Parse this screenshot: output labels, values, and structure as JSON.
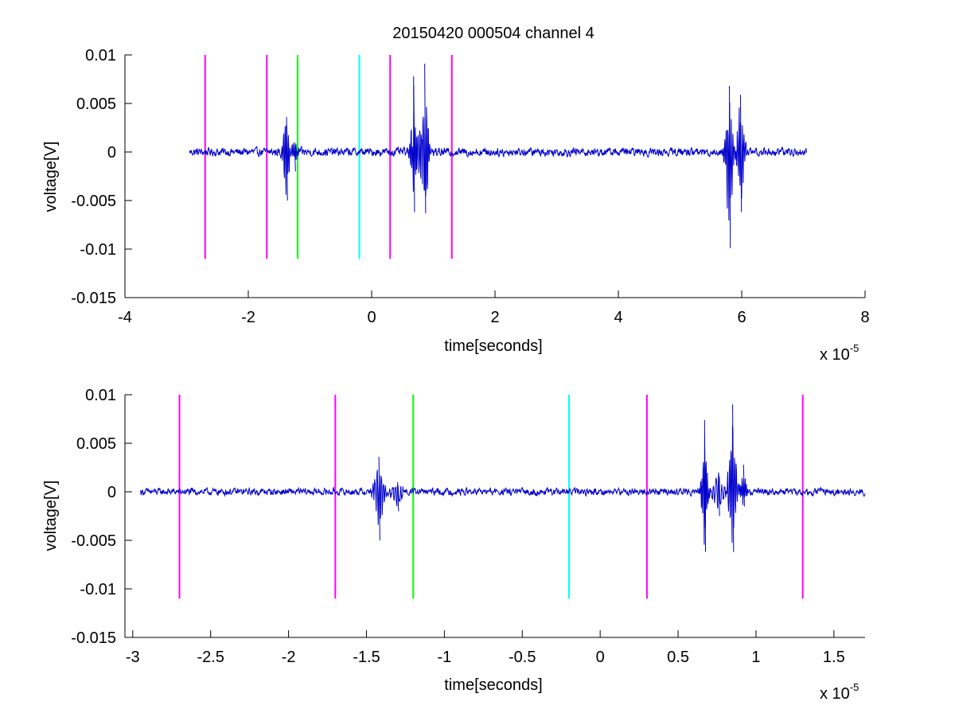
{
  "chart_data": [
    {
      "type": "line",
      "title": "20150420 000504 channel 4",
      "xlabel": "time[seconds]",
      "ylabel": "voltage[V]",
      "x_exponent_label": "x 10",
      "x_exponent_power": "-5",
      "xlim": [
        -4,
        8
      ],
      "ylim": [
        -0.015,
        0.01
      ],
      "xticks": [
        -4,
        -2,
        0,
        2,
        4,
        6,
        8
      ],
      "xtick_labels": [
        "-4",
        "-2",
        "0",
        "2",
        "4",
        "6",
        "8"
      ],
      "yticks": [
        0.01,
        0.005,
        0,
        -0.005,
        -0.01,
        -0.015
      ],
      "ytick_labels": [
        "0.01",
        "0.005",
        "0",
        "-0.005",
        "-0.01",
        "-0.015"
      ],
      "grid": false,
      "series": [
        {
          "color": "#0000cc",
          "x_start": -2.95,
          "x_end": 7.05,
          "baseline": 0,
          "noise_amplitude": 0.0006,
          "bursts": [
            {
              "x": -1.38,
              "min": -0.005,
              "max": 0.0036,
              "width": 0.12
            },
            {
              "x": -1.25,
              "min": -0.002,
              "max": 0.001,
              "width": 0.1
            },
            {
              "x": 0.68,
              "min": -0.0062,
              "max": 0.0078,
              "width": 0.1
            },
            {
              "x": 0.86,
              "min": -0.0063,
              "max": 0.0091,
              "width": 0.12
            },
            {
              "x": 0.78,
              "min": -0.0025,
              "max": 0.002,
              "width": 0.15
            },
            {
              "x": 5.8,
              "min": -0.0099,
              "max": 0.0068,
              "width": 0.12
            },
            {
              "x": 5.98,
              "min": -0.0062,
              "max": 0.0059,
              "width": 0.12
            }
          ]
        }
      ],
      "markers": [
        {
          "x": -2.7,
          "color": "#ff00ff",
          "y_from": -0.011,
          "y_to": 0.01
        },
        {
          "x": -1.7,
          "color": "#ff00ff",
          "y_from": -0.011,
          "y_to": 0.01
        },
        {
          "x": -1.2,
          "color": "#00ff00",
          "y_from": -0.011,
          "y_to": 0.01
        },
        {
          "x": -0.2,
          "color": "#00ffff",
          "y_from": -0.011,
          "y_to": 0.01
        },
        {
          "x": 0.3,
          "color": "#ff00ff",
          "y_from": -0.011,
          "y_to": 0.01
        },
        {
          "x": 1.3,
          "color": "#ff00ff",
          "y_from": -0.011,
          "y_to": 0.01
        }
      ]
    },
    {
      "type": "line",
      "title": "",
      "xlabel": "time[seconds]",
      "ylabel": "voltage[V]",
      "x_exponent_label": "x 10",
      "x_exponent_power": "-5",
      "xlim": [
        -3.05,
        1.7
      ],
      "ylim": [
        -0.015,
        0.01
      ],
      "xticks": [
        -3,
        -2.5,
        -2,
        -1.5,
        -1,
        -0.5,
        0,
        0.5,
        1,
        1.5
      ],
      "xtick_labels": [
        "-3",
        "-2.5",
        "-2",
        "-1.5",
        "-1",
        "-0.5",
        "0",
        "0.5",
        "1",
        "1.5"
      ],
      "yticks": [
        0.01,
        0.005,
        0,
        -0.005,
        -0.01,
        -0.015
      ],
      "ytick_labels": [
        "0.01",
        "0.005",
        "0",
        "-0.005",
        "-0.01",
        "-0.015"
      ],
      "grid": false,
      "series": [
        {
          "color": "#0000cc",
          "x_start": -2.95,
          "x_end": 1.7,
          "baseline": 0,
          "noise_amplitude": 0.0005,
          "bursts": [
            {
              "x": -1.42,
              "min": -0.005,
              "max": 0.0036,
              "width": 0.06
            },
            {
              "x": -1.3,
              "min": -0.002,
              "max": 0.001,
              "width": 0.08
            },
            {
              "x": 0.67,
              "min": -0.0062,
              "max": 0.0074,
              "width": 0.04
            },
            {
              "x": 0.85,
              "min": -0.0062,
              "max": 0.009,
              "width": 0.05
            },
            {
              "x": 0.76,
              "min": -0.0025,
              "max": 0.002,
              "width": 0.08
            },
            {
              "x": 0.92,
              "min": -0.0015,
              "max": 0.0028,
              "width": 0.04
            }
          ]
        }
      ],
      "markers": [
        {
          "x": -2.7,
          "color": "#ff00ff",
          "y_from": -0.011,
          "y_to": 0.01
        },
        {
          "x": -1.7,
          "color": "#ff00ff",
          "y_from": -0.011,
          "y_to": 0.01
        },
        {
          "x": -1.2,
          "color": "#00ff00",
          "y_from": -0.011,
          "y_to": 0.01
        },
        {
          "x": -0.2,
          "color": "#00ffff",
          "y_from": -0.011,
          "y_to": 0.01
        },
        {
          "x": 0.3,
          "color": "#ff00ff",
          "y_from": -0.011,
          "y_to": 0.01
        },
        {
          "x": 1.3,
          "color": "#ff00ff",
          "y_from": -0.011,
          "y_to": 0.01
        }
      ]
    }
  ]
}
